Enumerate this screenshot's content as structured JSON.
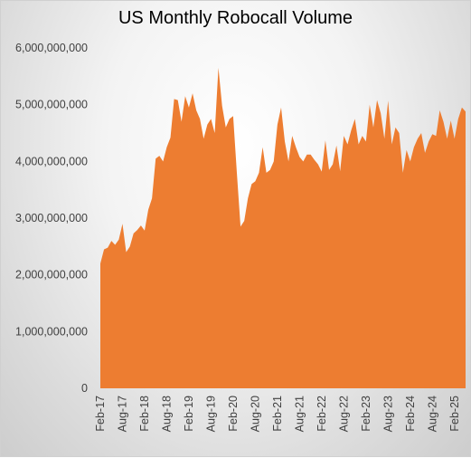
{
  "chart_data": {
    "type": "area",
    "title": "US Monthly Robocall Volume",
    "xlabel": "",
    "ylabel": "",
    "ylim": [
      0,
      6000000000
    ],
    "yticks": [
      "0",
      "1,000,000,000",
      "2,000,000,000",
      "3,000,000,000",
      "4,000,000,000",
      "5,000,000,000",
      "6,000,000,000"
    ],
    "xticks": [
      "Feb-17",
      "Aug-17",
      "Feb-18",
      "Aug-18",
      "Feb-19",
      "Aug-19",
      "Feb-20",
      "Aug-20",
      "Feb-21",
      "Aug-21",
      "Feb-22",
      "Aug-22",
      "Feb-23",
      "Aug-23",
      "Feb-24",
      "Aug-24",
      "Feb-25"
    ],
    "grid": false,
    "color": "#ED7D31",
    "series": [
      {
        "values": [
          2200000000,
          2450000000,
          2480000000,
          2600000000,
          2530000000,
          2620000000,
          2900000000,
          2400000000,
          2500000000,
          2730000000,
          2790000000,
          2870000000,
          2780000000,
          3150000000,
          3350000000,
          4050000000,
          4100000000,
          4000000000,
          4250000000,
          4420000000,
          5100000000,
          5080000000,
          4700000000,
          5150000000,
          4950000000,
          5200000000,
          4900000000,
          4750000000,
          4400000000,
          4650000000,
          4750000000,
          4500000000,
          5650000000,
          4980000000,
          4600000000,
          4750000000,
          4800000000,
          3800000000,
          2850000000,
          2950000000,
          3350000000,
          3600000000,
          3650000000,
          3800000000,
          4250000000,
          3800000000,
          3850000000,
          4000000000,
          4650000000,
          4950000000,
          4350000000,
          4000000000,
          4450000000,
          4250000000,
          4080000000,
          4000000000,
          4120000000,
          4120000000,
          4030000000,
          3950000000,
          3820000000,
          4370000000,
          3850000000,
          3950000000,
          4280000000,
          3830000000,
          4450000000,
          4300000000,
          4550000000,
          4750000000,
          4300000000,
          4450000000,
          4350000000,
          5000000000,
          4600000000,
          5080000000,
          4850000000,
          4400000000,
          5070000000,
          4300000000,
          4600000000,
          4500000000,
          3800000000,
          4200000000,
          4000000000,
          4250000000,
          4400000000,
          4500000000,
          4150000000,
          4350000000,
          4480000000,
          4450000000,
          4900000000,
          4700000000,
          4400000000,
          4720000000,
          4400000000,
          4750000000,
          4950000000,
          4880000000
        ]
      }
    ]
  }
}
